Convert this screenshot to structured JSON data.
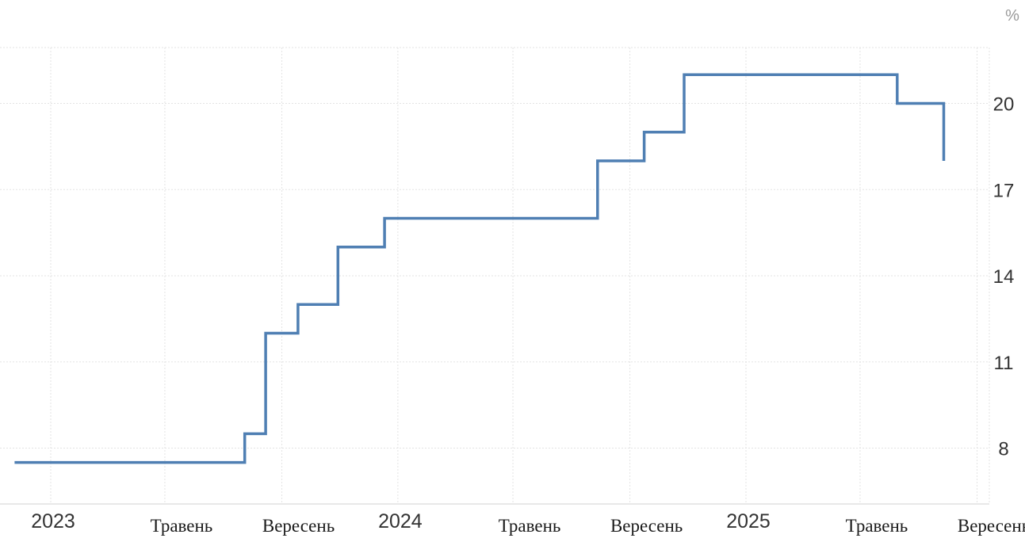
{
  "chart_data": {
    "type": "line",
    "step": true,
    "unit": "%",
    "series_color": "#4f7fb3",
    "grid": true,
    "y_axis_position": "right",
    "ylim": [
      6.5,
      21.5
    ],
    "y_ticks": [
      {
        "value": 8,
        "label": "8"
      },
      {
        "value": 11,
        "label": "11"
      },
      {
        "value": 14,
        "label": "14"
      },
      {
        "value": 17,
        "label": "17"
      },
      {
        "value": 20,
        "label": "20"
      }
    ],
    "xlim": [
      "2022-11-24",
      "2025-10-23"
    ],
    "x_ticks": [
      {
        "date": "2023-01-01",
        "label": "2023",
        "kind": "year"
      },
      {
        "date": "2023-05-01",
        "label": "Травень",
        "kind": "month"
      },
      {
        "date": "2023-09-01",
        "label": "Вересень",
        "kind": "month"
      },
      {
        "date": "2024-01-01",
        "label": "2024",
        "kind": "year"
      },
      {
        "date": "2024-05-01",
        "label": "Травень",
        "kind": "month"
      },
      {
        "date": "2024-09-01",
        "label": "Вересень",
        "kind": "month"
      },
      {
        "date": "2025-01-01",
        "label": "2025",
        "kind": "year"
      },
      {
        "date": "2025-05-01",
        "label": "Травень",
        "kind": "month"
      },
      {
        "date": "2025-09-01",
        "label": "Вересень",
        "kind": "month"
      }
    ],
    "points": [
      {
        "date": "2022-11-24",
        "value": 7.5
      },
      {
        "date": "2023-07-24",
        "value": 8.5
      },
      {
        "date": "2023-08-15",
        "value": 12
      },
      {
        "date": "2023-09-18",
        "value": 13
      },
      {
        "date": "2023-10-30",
        "value": 15
      },
      {
        "date": "2023-12-18",
        "value": 16
      },
      {
        "date": "2024-07-29",
        "value": 18
      },
      {
        "date": "2024-09-16",
        "value": 19
      },
      {
        "date": "2024-10-28",
        "value": 21
      },
      {
        "date": "2025-06-09",
        "value": 20
      },
      {
        "date": "2025-07-28",
        "value": 18
      }
    ]
  }
}
